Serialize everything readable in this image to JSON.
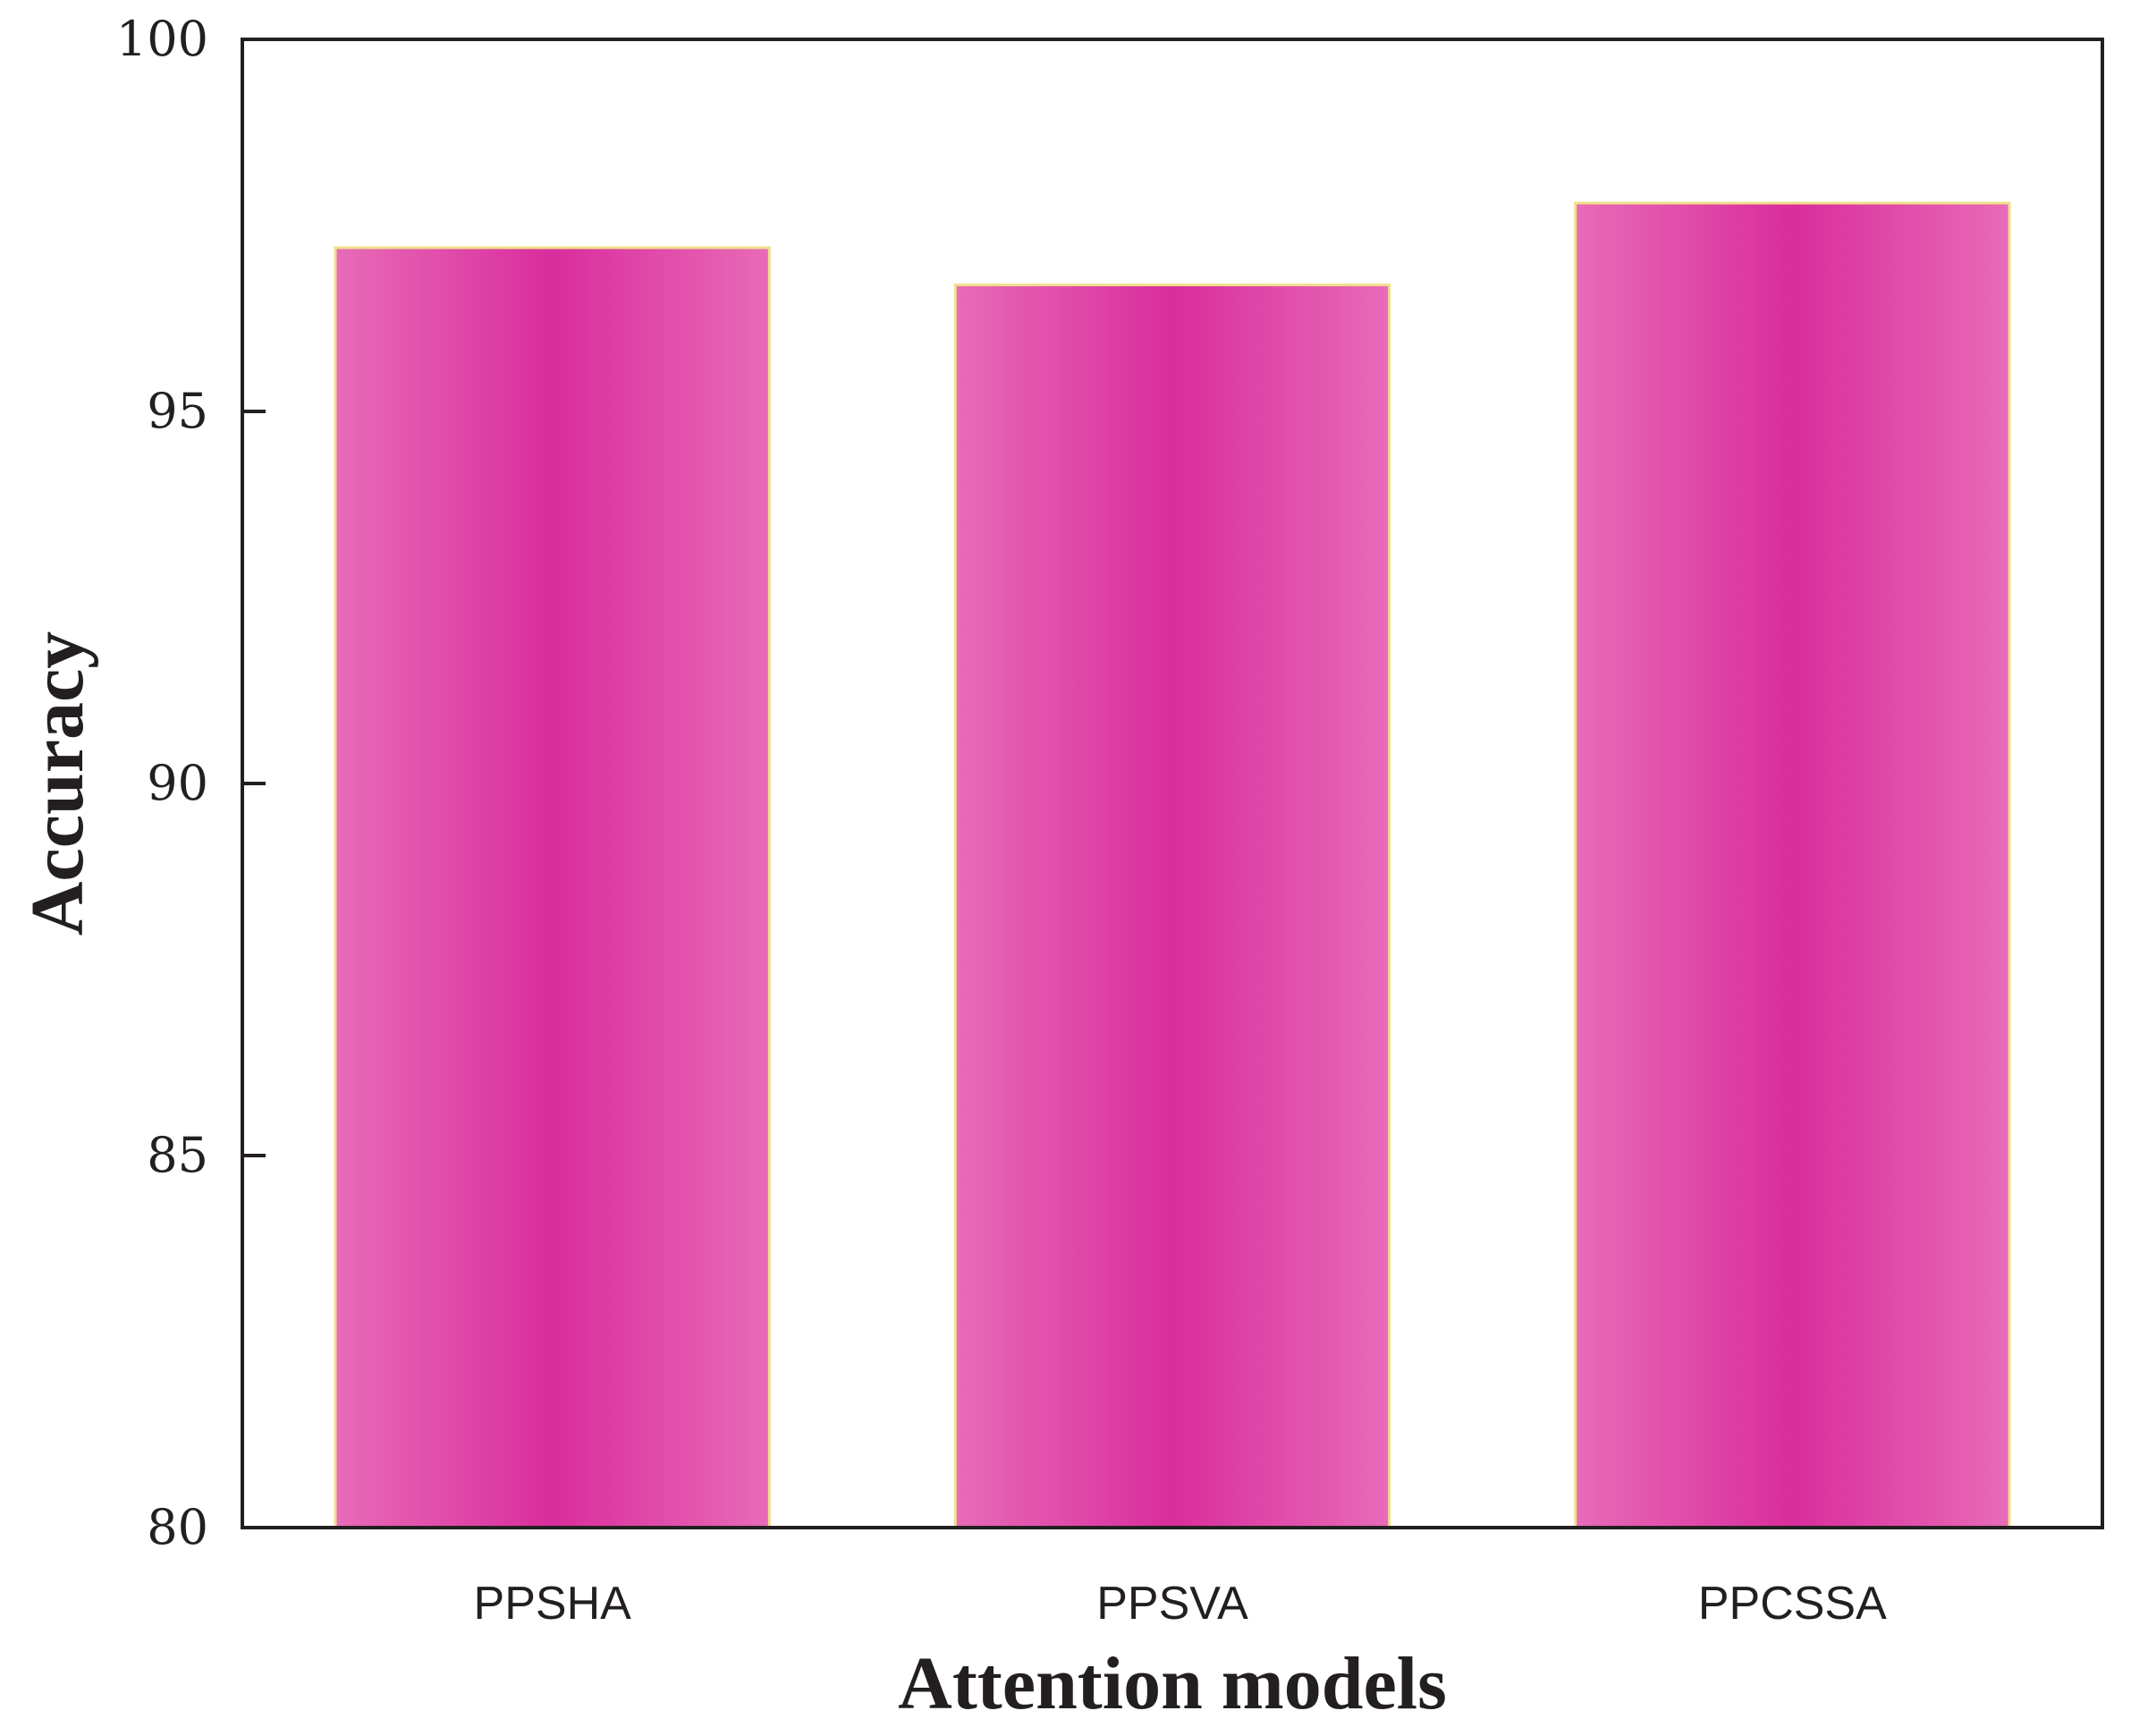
{
  "chart_data": {
    "type": "bar",
    "title": "",
    "xlabel": "Attention models",
    "ylabel": "Accuracy",
    "categories": [
      "PPSHA",
      "PPSVA",
      "PPCSSA"
    ],
    "values": [
      97.2,
      96.7,
      97.8
    ],
    "ylim": [
      80,
      100
    ],
    "yticks": [
      "80",
      "85",
      "90",
      "95",
      "100"
    ],
    "grid": false,
    "legend": "none",
    "colors": {
      "bar_center": "#d92d9c",
      "bar_edge": "#e86bb8",
      "bar_outline": "#f0e08c",
      "axis": "#231f20"
    }
  }
}
